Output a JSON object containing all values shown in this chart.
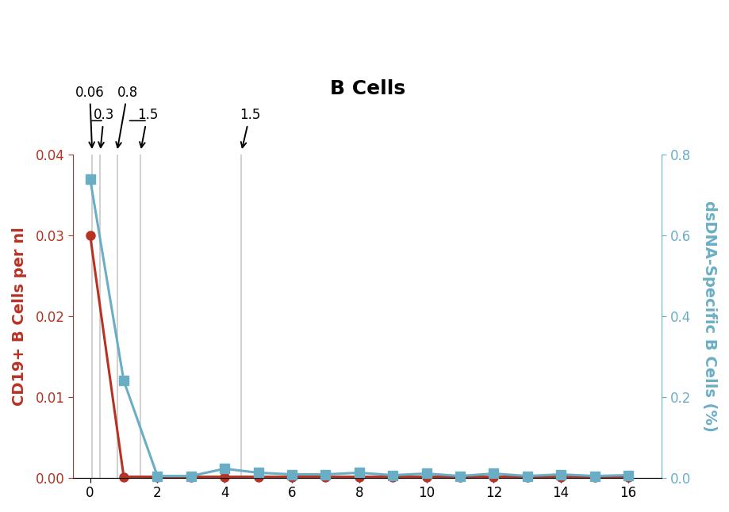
{
  "title": "B Cells",
  "title_fontsize": 18,
  "title_fontweight": "bold",
  "left_ylabel": "CD19+ B Cells per nl",
  "right_ylabel": "dsDNA-Specific B Cells (%)",
  "left_color": "#b83224",
  "right_color": "#6aaec6",
  "x_ticks": [
    0,
    2,
    4,
    6,
    8,
    10,
    12,
    14,
    16
  ],
  "red_x": [
    0,
    1,
    2,
    3,
    4,
    5,
    6,
    7,
    8,
    9,
    10,
    11,
    12,
    13,
    14,
    15,
    16
  ],
  "red_y": [
    0.03,
    0.0001,
    0.0001,
    0.0001,
    0.0001,
    0.0001,
    0.0001,
    0.0001,
    0.0001,
    0.0001,
    0.0001,
    0.0001,
    0.0001,
    0.0001,
    0.0001,
    0.0001,
    0.0001
  ],
  "blue_x": [
    0,
    1,
    2,
    3,
    4,
    5,
    6,
    7,
    8,
    9,
    10,
    11,
    12,
    13,
    14,
    15,
    16
  ],
  "blue_y": [
    0.74,
    0.24,
    0.004,
    0.004,
    0.022,
    0.012,
    0.008,
    0.008,
    0.012,
    0.006,
    0.01,
    0.004,
    0.01,
    0.004,
    0.008,
    0.004,
    0.006
  ],
  "vline_positions": [
    0.06,
    0.3,
    0.8,
    1.5,
    4.5
  ],
  "left_ylim": [
    0,
    0.04
  ],
  "right_ylim": [
    0,
    0.8
  ],
  "left_yticks": [
    0.0,
    0.01,
    0.02,
    0.03,
    0.04
  ],
  "right_yticks": [
    0.0,
    0.2,
    0.4,
    0.6,
    0.8
  ],
  "xlim": [
    -0.5,
    17
  ]
}
